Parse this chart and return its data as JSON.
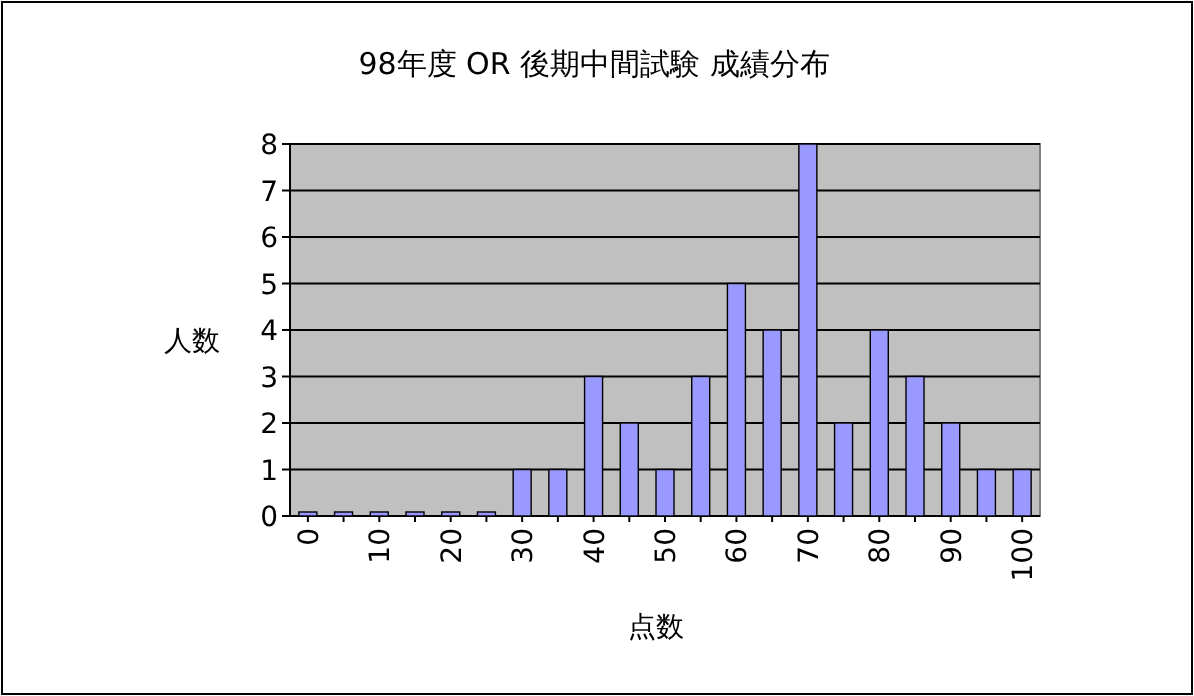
{
  "chart_data": {
    "type": "bar",
    "title": "98年度 OR 後期中間試験 成績分布",
    "xlabel": "点数",
    "ylabel": "人数",
    "categories": [
      "0",
      null,
      "10",
      null,
      "20",
      null,
      "30",
      null,
      "40",
      null,
      "50",
      null,
      "60",
      null,
      "70",
      null,
      "80",
      null,
      "90",
      null,
      "100"
    ],
    "values": [
      0,
      0,
      0,
      0,
      0,
      0,
      1,
      1,
      3,
      2,
      1,
      3,
      5,
      4,
      8,
      2,
      4,
      3,
      2,
      1,
      1
    ],
    "color": "#9999ff",
    "ylim": [
      0,
      8
    ],
    "yticks": [
      0,
      1,
      2,
      3,
      4,
      5,
      6,
      7,
      8
    ],
    "grid": "y"
  }
}
